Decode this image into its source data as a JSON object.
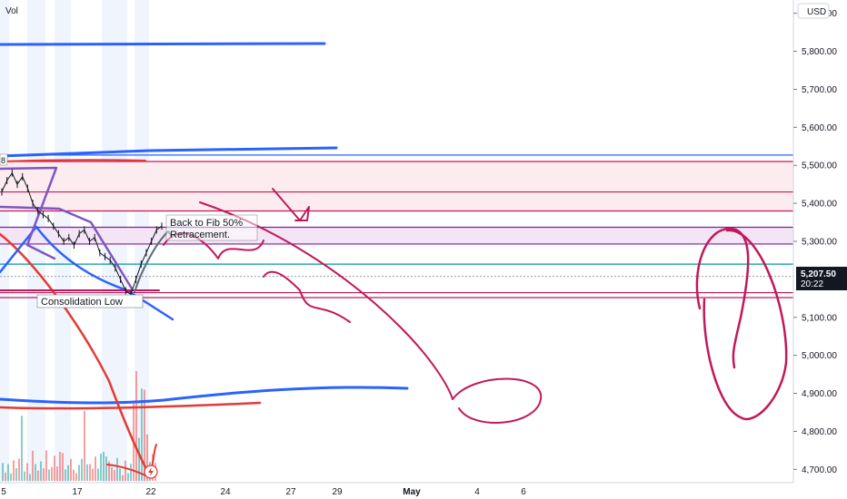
{
  "header": {
    "volume_label": "Vol",
    "currency": "USD"
  },
  "annotations": {
    "fib_note_line1": "Back to Fib 50%",
    "fib_note_line2": "Retracement.",
    "consolidation_label": "Consolidation Low",
    "small_marker": "8"
  },
  "price_badge": {
    "price": "5,207.50",
    "countdown": "20:22"
  },
  "chart_data": {
    "type": "line",
    "title": "",
    "y_ticks": [
      4700,
      4800,
      4900,
      5000,
      5100,
      5200,
      5300,
      5400,
      5500,
      5600,
      5700,
      5800,
      5900
    ],
    "y_tick_labels": [
      "4,700.00",
      "4,800.00",
      "4,900.00",
      "5,000.00",
      "5,100.00",
      "",
      "5,300.00",
      "5,400.00",
      "5,500.00",
      "5,600.00",
      "5,700.00",
      "5,800.00",
      "5,900.00"
    ],
    "ylim": [
      4665,
      5935
    ],
    "x_ticks": [
      "5",
      "17",
      "22",
      "24",
      "27",
      "29",
      "May",
      "4",
      "6"
    ],
    "current_price": 5207.5,
    "horizontal_levels": [
      {
        "value": 5527,
        "color": "#2962ff"
      },
      {
        "value": 5510,
        "color": "#c2185b"
      },
      {
        "value": 5430,
        "color": "#c2185b"
      },
      {
        "value": 5380,
        "color": "#c2185b"
      },
      {
        "value": 5337,
        "color": "#7b1fa2"
      },
      {
        "value": 5293,
        "color": "#7b1fa2"
      },
      {
        "value": 5240,
        "color": "#0097a7"
      },
      {
        "value": 5165,
        "color": "#c2185b"
      },
      {
        "value": 5152,
        "color": "#c2185b"
      }
    ],
    "price_path": [
      5430,
      5460,
      5480,
      5450,
      5470,
      5440,
      5400,
      5380,
      5370,
      5360,
      5340,
      5320,
      5300,
      5310,
      5290,
      5320,
      5330,
      5300,
      5310,
      5270,
      5260,
      5250,
      5230,
      5200,
      5170,
      5160,
      5200,
      5240,
      5270,
      5300,
      5330,
      5340
    ]
  },
  "colors": {
    "blue_trend": "#2962ff",
    "red_trend": "#e53935",
    "drawing": "#c2185b",
    "purple": "#7e57c2",
    "badge_bg": "#131722",
    "zone_fill": "#fdecef",
    "purple_fill": "#f3e5f5"
  },
  "icons": {
    "lightning": "lightning-icon"
  }
}
